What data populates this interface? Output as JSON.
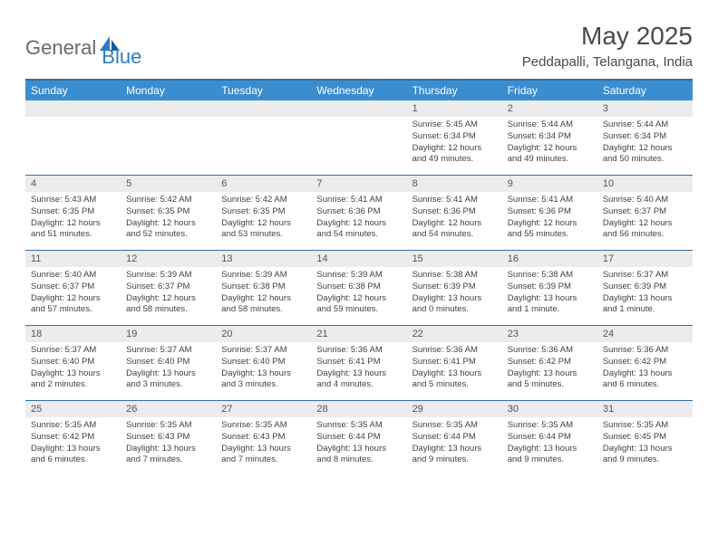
{
  "logo": {
    "text1": "General",
    "text2": "Blue"
  },
  "title": "May 2025",
  "location": "Peddapalli, Telangana, India",
  "daysOfWeek": [
    "Sunday",
    "Monday",
    "Tuesday",
    "Wednesday",
    "Thursday",
    "Friday",
    "Saturday"
  ],
  "colors": {
    "header_bg": "#3a8dcf",
    "header_border": "#2d6fa8",
    "row_border": "#3570a3",
    "daynum_bg": "#ececec",
    "logo_blue": "#2d7dc1",
    "text": "#4a4a4a"
  },
  "weeks": [
    [
      {
        "n": "",
        "sunrise": "",
        "sunset": "",
        "daylight": ""
      },
      {
        "n": "",
        "sunrise": "",
        "sunset": "",
        "daylight": ""
      },
      {
        "n": "",
        "sunrise": "",
        "sunset": "",
        "daylight": ""
      },
      {
        "n": "",
        "sunrise": "",
        "sunset": "",
        "daylight": ""
      },
      {
        "n": "1",
        "sunrise": "Sunrise: 5:45 AM",
        "sunset": "Sunset: 6:34 PM",
        "daylight": "Daylight: 12 hours and 49 minutes."
      },
      {
        "n": "2",
        "sunrise": "Sunrise: 5:44 AM",
        "sunset": "Sunset: 6:34 PM",
        "daylight": "Daylight: 12 hours and 49 minutes."
      },
      {
        "n": "3",
        "sunrise": "Sunrise: 5:44 AM",
        "sunset": "Sunset: 6:34 PM",
        "daylight": "Daylight: 12 hours and 50 minutes."
      }
    ],
    [
      {
        "n": "4",
        "sunrise": "Sunrise: 5:43 AM",
        "sunset": "Sunset: 6:35 PM",
        "daylight": "Daylight: 12 hours and 51 minutes."
      },
      {
        "n": "5",
        "sunrise": "Sunrise: 5:42 AM",
        "sunset": "Sunset: 6:35 PM",
        "daylight": "Daylight: 12 hours and 52 minutes."
      },
      {
        "n": "6",
        "sunrise": "Sunrise: 5:42 AM",
        "sunset": "Sunset: 6:35 PM",
        "daylight": "Daylight: 12 hours and 53 minutes."
      },
      {
        "n": "7",
        "sunrise": "Sunrise: 5:41 AM",
        "sunset": "Sunset: 6:36 PM",
        "daylight": "Daylight: 12 hours and 54 minutes."
      },
      {
        "n": "8",
        "sunrise": "Sunrise: 5:41 AM",
        "sunset": "Sunset: 6:36 PM",
        "daylight": "Daylight: 12 hours and 54 minutes."
      },
      {
        "n": "9",
        "sunrise": "Sunrise: 5:41 AM",
        "sunset": "Sunset: 6:36 PM",
        "daylight": "Daylight: 12 hours and 55 minutes."
      },
      {
        "n": "10",
        "sunrise": "Sunrise: 5:40 AM",
        "sunset": "Sunset: 6:37 PM",
        "daylight": "Daylight: 12 hours and 56 minutes."
      }
    ],
    [
      {
        "n": "11",
        "sunrise": "Sunrise: 5:40 AM",
        "sunset": "Sunset: 6:37 PM",
        "daylight": "Daylight: 12 hours and 57 minutes."
      },
      {
        "n": "12",
        "sunrise": "Sunrise: 5:39 AM",
        "sunset": "Sunset: 6:37 PM",
        "daylight": "Daylight: 12 hours and 58 minutes."
      },
      {
        "n": "13",
        "sunrise": "Sunrise: 5:39 AM",
        "sunset": "Sunset: 6:38 PM",
        "daylight": "Daylight: 12 hours and 58 minutes."
      },
      {
        "n": "14",
        "sunrise": "Sunrise: 5:39 AM",
        "sunset": "Sunset: 6:38 PM",
        "daylight": "Daylight: 12 hours and 59 minutes."
      },
      {
        "n": "15",
        "sunrise": "Sunrise: 5:38 AM",
        "sunset": "Sunset: 6:39 PM",
        "daylight": "Daylight: 13 hours and 0 minutes."
      },
      {
        "n": "16",
        "sunrise": "Sunrise: 5:38 AM",
        "sunset": "Sunset: 6:39 PM",
        "daylight": "Daylight: 13 hours and 1 minute."
      },
      {
        "n": "17",
        "sunrise": "Sunrise: 5:37 AM",
        "sunset": "Sunset: 6:39 PM",
        "daylight": "Daylight: 13 hours and 1 minute."
      }
    ],
    [
      {
        "n": "18",
        "sunrise": "Sunrise: 5:37 AM",
        "sunset": "Sunset: 6:40 PM",
        "daylight": "Daylight: 13 hours and 2 minutes."
      },
      {
        "n": "19",
        "sunrise": "Sunrise: 5:37 AM",
        "sunset": "Sunset: 6:40 PM",
        "daylight": "Daylight: 13 hours and 3 minutes."
      },
      {
        "n": "20",
        "sunrise": "Sunrise: 5:37 AM",
        "sunset": "Sunset: 6:40 PM",
        "daylight": "Daylight: 13 hours and 3 minutes."
      },
      {
        "n": "21",
        "sunrise": "Sunrise: 5:36 AM",
        "sunset": "Sunset: 6:41 PM",
        "daylight": "Daylight: 13 hours and 4 minutes."
      },
      {
        "n": "22",
        "sunrise": "Sunrise: 5:36 AM",
        "sunset": "Sunset: 6:41 PM",
        "daylight": "Daylight: 13 hours and 5 minutes."
      },
      {
        "n": "23",
        "sunrise": "Sunrise: 5:36 AM",
        "sunset": "Sunset: 6:42 PM",
        "daylight": "Daylight: 13 hours and 5 minutes."
      },
      {
        "n": "24",
        "sunrise": "Sunrise: 5:36 AM",
        "sunset": "Sunset: 6:42 PM",
        "daylight": "Daylight: 13 hours and 6 minutes."
      }
    ],
    [
      {
        "n": "25",
        "sunrise": "Sunrise: 5:35 AM",
        "sunset": "Sunset: 6:42 PM",
        "daylight": "Daylight: 13 hours and 6 minutes."
      },
      {
        "n": "26",
        "sunrise": "Sunrise: 5:35 AM",
        "sunset": "Sunset: 6:43 PM",
        "daylight": "Daylight: 13 hours and 7 minutes."
      },
      {
        "n": "27",
        "sunrise": "Sunrise: 5:35 AM",
        "sunset": "Sunset: 6:43 PM",
        "daylight": "Daylight: 13 hours and 7 minutes."
      },
      {
        "n": "28",
        "sunrise": "Sunrise: 5:35 AM",
        "sunset": "Sunset: 6:44 PM",
        "daylight": "Daylight: 13 hours and 8 minutes."
      },
      {
        "n": "29",
        "sunrise": "Sunrise: 5:35 AM",
        "sunset": "Sunset: 6:44 PM",
        "daylight": "Daylight: 13 hours and 9 minutes."
      },
      {
        "n": "30",
        "sunrise": "Sunrise: 5:35 AM",
        "sunset": "Sunset: 6:44 PM",
        "daylight": "Daylight: 13 hours and 9 minutes."
      },
      {
        "n": "31",
        "sunrise": "Sunrise: 5:35 AM",
        "sunset": "Sunset: 6:45 PM",
        "daylight": "Daylight: 13 hours and 9 minutes."
      }
    ]
  ]
}
